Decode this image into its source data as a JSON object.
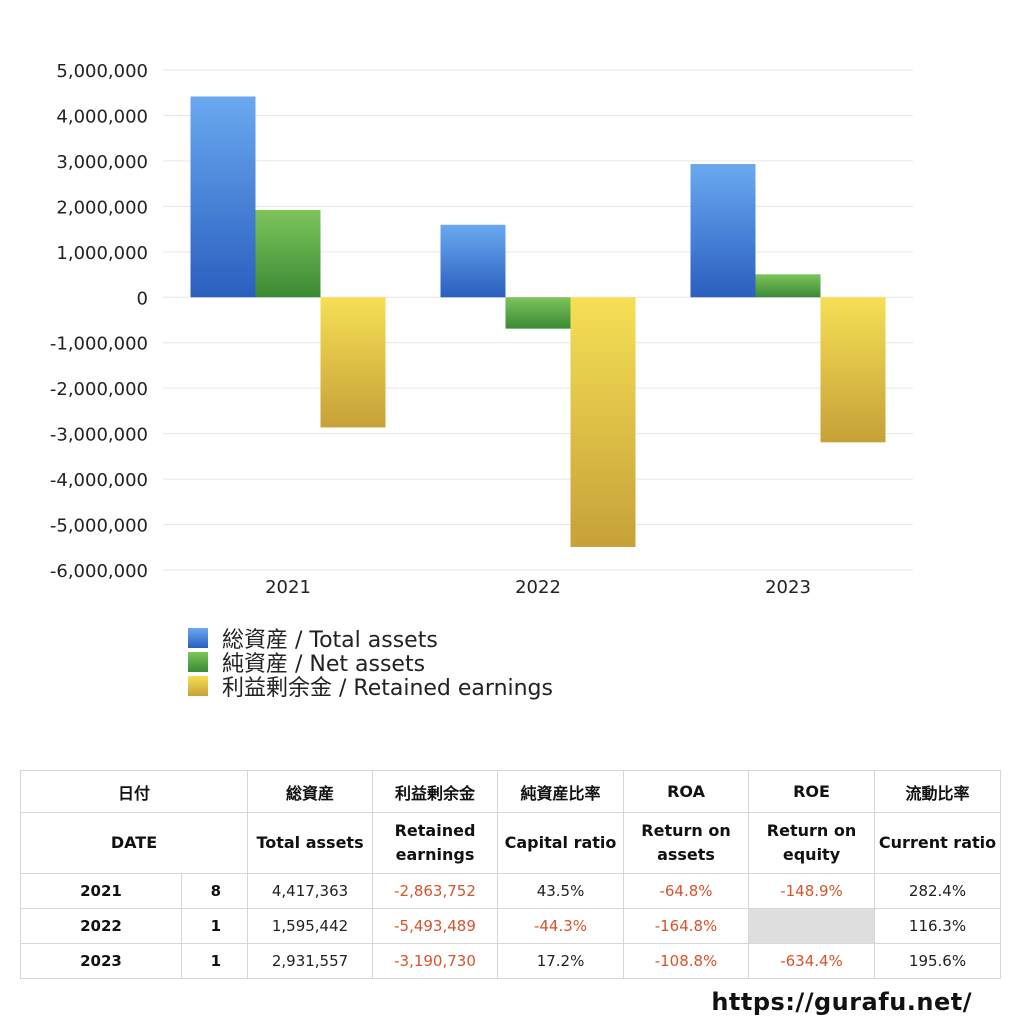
{
  "chart_data": {
    "type": "bar",
    "categories": [
      "2021",
      "2022",
      "2023"
    ],
    "ylim": [
      -6000000,
      5000000
    ],
    "yticks": [
      5000000,
      4000000,
      3000000,
      2000000,
      1000000,
      0,
      -1000000,
      -2000000,
      -3000000,
      -4000000,
      -5000000,
      -6000000
    ],
    "ytick_labels": [
      "5,000,000",
      "4,000,000",
      "3,000,000",
      "2,000,000",
      "1,000,000",
      "0",
      "-1,000,000",
      "-2,000,000",
      "-3,000,000",
      "-4,000,000",
      "-5,000,000",
      "-6,000,000"
    ],
    "grid": true,
    "legend_position": "bottom-left",
    "series": [
      {
        "name": "総資産 / Total assets",
        "values": [
          4417363,
          1595442,
          2931557
        ],
        "color_top": "#6aa9f0",
        "color_bottom": "#2a5fbf"
      },
      {
        "name": "純資産 / Net assets",
        "values": [
          1920000,
          -690000,
          505000
        ],
        "color_top": "#7dc45a",
        "color_bottom": "#3a8a35"
      },
      {
        "name": "利益剰余金 / Retained earnings",
        "values": [
          -2863752,
          -5493489,
          -3190730
        ],
        "color_top": "#f6df55",
        "color_bottom": "#c6a138"
      }
    ]
  },
  "table": {
    "header_jp": [
      "日付",
      "総資産",
      "利益剰余金",
      "純資産比率",
      "ROA",
      "ROE",
      "流動比率"
    ],
    "header_en": {
      "date": "DATE",
      "total_assets": "Total assets",
      "retained_1": "Retained",
      "retained_2": "earnings",
      "capital": "Capital ratio",
      "roa_1": "Return on",
      "roa_2": "assets",
      "roe_1": "Return on",
      "roe_2": "equity",
      "current": "Current ratio"
    },
    "rows": [
      {
        "year": "2021",
        "count": "8",
        "total_assets": "4,417,363",
        "retained": "-2,863,752",
        "capital": "43.5%",
        "roa": "-64.8%",
        "roe": "-148.9%",
        "current": "282.4%"
      },
      {
        "year": "2022",
        "count": "1",
        "total_assets": "1,595,442",
        "retained": "-5,493,489",
        "capital": "-44.3%",
        "roa": "-164.8%",
        "roe": "",
        "current": "116.3%"
      },
      {
        "year": "2023",
        "count": "1",
        "total_assets": "2,931,557",
        "retained": "-3,190,730",
        "capital": "17.2%",
        "roa": "-108.8%",
        "roe": "-634.4%",
        "current": "195.6%"
      }
    ]
  },
  "footer": {
    "url": "https://gurafu.net/"
  }
}
